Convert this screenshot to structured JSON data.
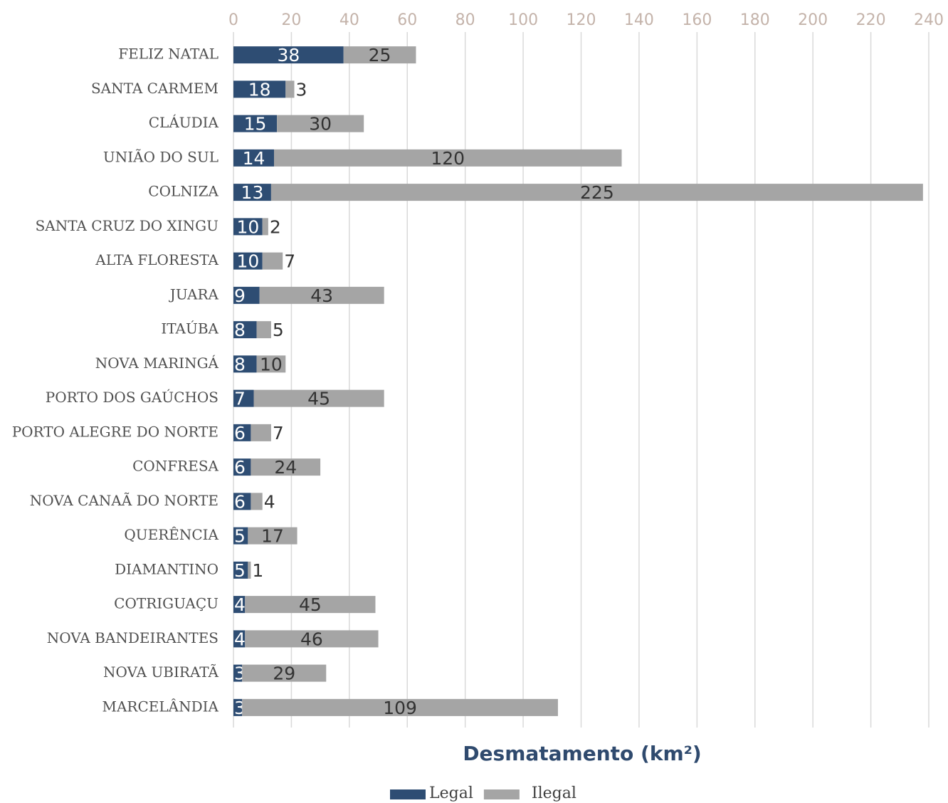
{
  "chart_data": {
    "type": "stacked-bar-horizontal",
    "x_label": "Desmatamento (km²)",
    "categories": [
      "FELIZ NATAL",
      "SANTA CARMEM",
      "CLÁUDIA",
      "UNIÃO DO SUL",
      "COLNIZA",
      "SANTA CRUZ DO XINGU",
      "ALTA FLORESTA",
      "JUARA",
      "ITAÚBA",
      "NOVA MARINGÁ",
      "PORTO DOS GAÚCHOS",
      "PORTO ALEGRE DO NORTE",
      "CONFRESA",
      "NOVA CANAÃ DO NORTE",
      "QUERÊNCIA",
      "DIAMANTINO",
      "COTRIGUAÇU",
      "NOVA BANDEIRANTES",
      "NOVA UBIRATÃ",
      "MARCELÂNDIA"
    ],
    "series": [
      {
        "name": "Legal",
        "color": "#2e4d73",
        "values": [
          38,
          18,
          15,
          14,
          13,
          10,
          10,
          9,
          8,
          8,
          7,
          6,
          6,
          6,
          5,
          5,
          4,
          4,
          3,
          3
        ]
      },
      {
        "name": "Ilegal",
        "color": "#a5a5a5",
        "values": [
          25,
          3,
          30,
          120,
          225,
          2,
          7,
          43,
          5,
          10,
          45,
          7,
          24,
          4,
          17,
          1,
          45,
          46,
          29,
          109
        ]
      }
    ],
    "xlim": [
      0,
      240
    ],
    "xticks": [
      0,
      20,
      40,
      60,
      80,
      100,
      120,
      140,
      160,
      180,
      200,
      220,
      240
    ],
    "grid": true,
    "legend": "bottom"
  }
}
